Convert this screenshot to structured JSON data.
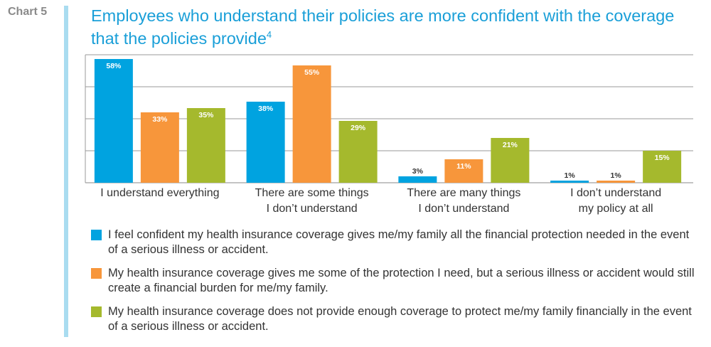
{
  "header": {
    "chart_label": "Chart 5",
    "title": "Employees who understand their policies are more confident with the coverage that the policies provide",
    "footnote": "4"
  },
  "colors": {
    "blue": "#00a3e0",
    "orange": "#f7963b",
    "green": "#a5b92d",
    "title": "#1a9fd8",
    "accent": "#a9dcf0"
  },
  "chart_data": {
    "type": "bar",
    "title": "Employees who understand their policies are more confident with the coverage that the policies provide",
    "categories": [
      [
        "I understand everything"
      ],
      [
        "There are some things",
        "I don’t understand"
      ],
      [
        "There are many things",
        "I don’t understand"
      ],
      [
        "I don’t understand",
        "my policy at all"
      ]
    ],
    "series": [
      {
        "name": "I feel confident my health insurance coverage gives me/my family all the financial protection needed in the event of a serious illness or accident.",
        "values": [
          58,
          38,
          3,
          1
        ],
        "color": "#00a3e0"
      },
      {
        "name": "My health insurance coverage gives me some of the protection I need, but a serious illness or accident would still create a financial burden for me/my family.",
        "values": [
          33,
          55,
          11,
          1
        ],
        "color": "#f7963b"
      },
      {
        "name": "My health insurance coverage does not provide enough coverage to protect me/my family financially in the event of a serious illness or accident.",
        "values": [
          35,
          29,
          21,
          15
        ],
        "color": "#a5b92d"
      }
    ],
    "value_suffix": "%",
    "ylim": [
      0,
      60
    ],
    "gridlines": [
      0,
      15,
      30,
      45,
      60
    ],
    "legend_position": "bottom",
    "grid": true
  }
}
